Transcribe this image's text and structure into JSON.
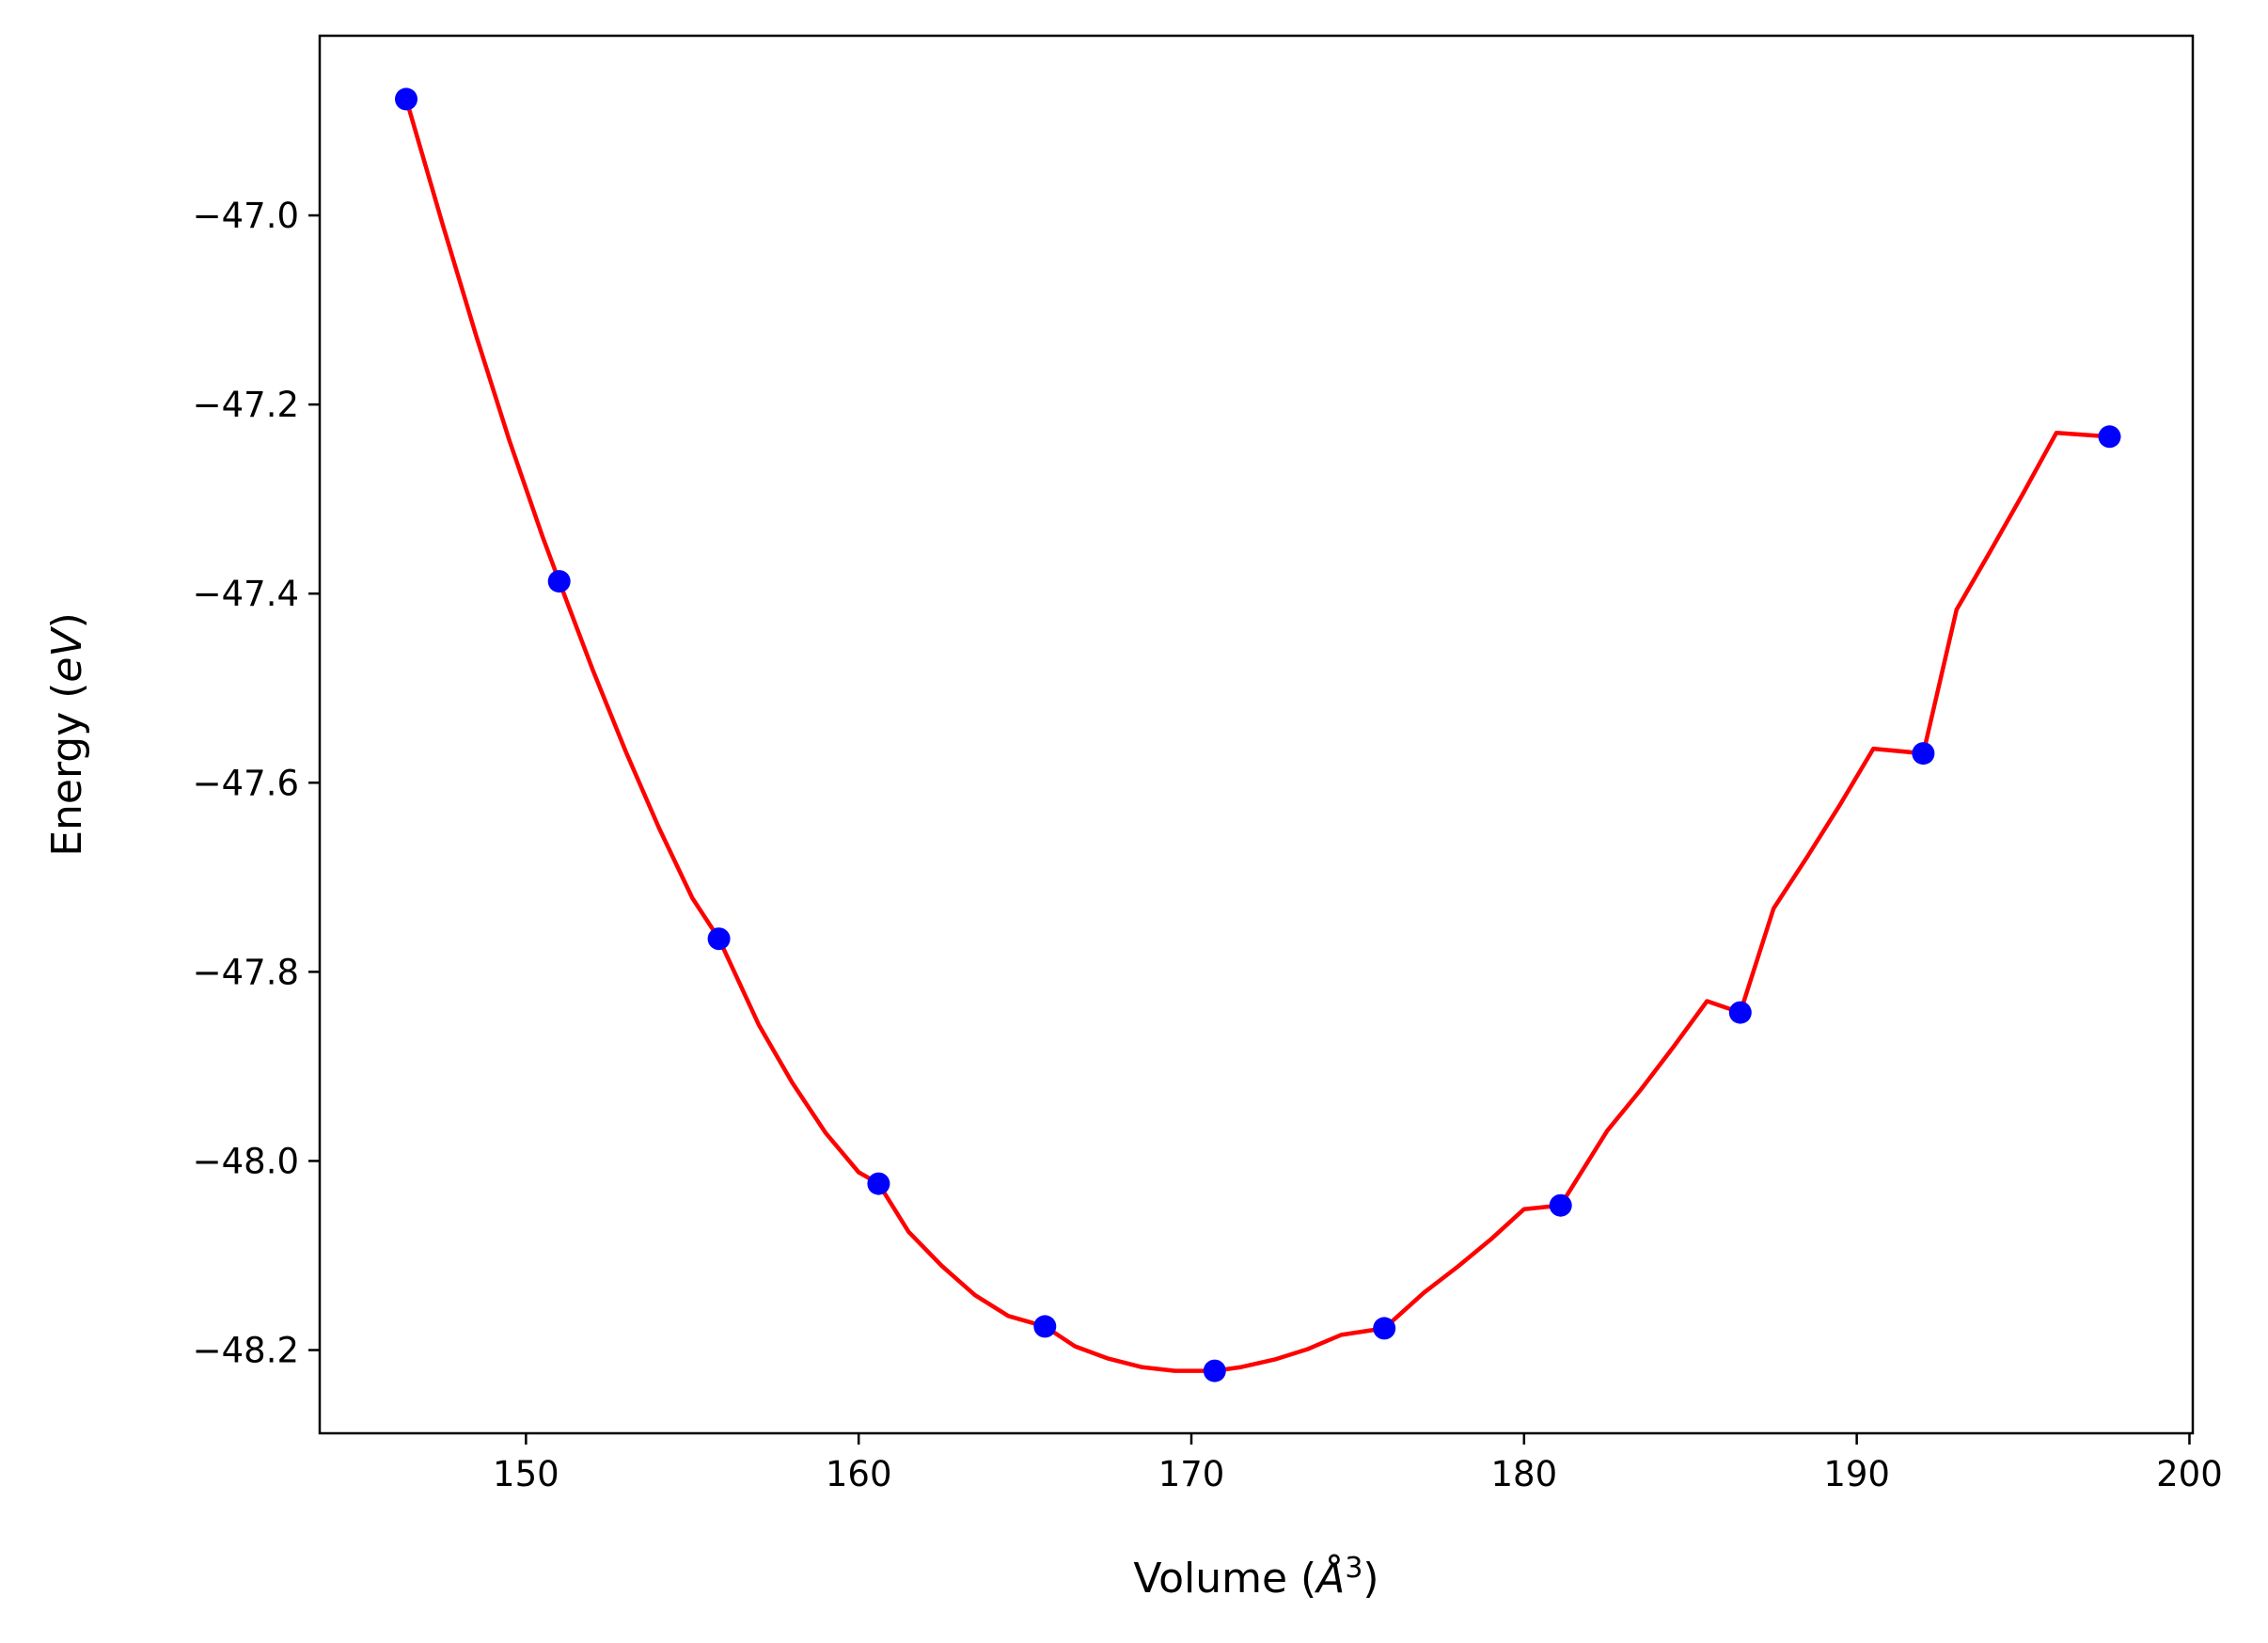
{
  "chart_data": {
    "type": "line",
    "title": "",
    "xlabel": {
      "prefix": "Volume (",
      "symbol": "Å",
      "sup": "3",
      "suffix": ")"
    },
    "ylabel": {
      "prefix": "Energy (",
      "symbol": "eV",
      "suffix": ")"
    },
    "xlim": [
      143.8,
      200.1
    ],
    "ylim": [
      -48.288,
      -46.81
    ],
    "xticks": [
      150,
      160,
      170,
      180,
      190,
      200
    ],
    "yticks": [
      -47.0,
      -47.2,
      -47.4,
      -47.6,
      -47.8,
      -48.0,
      -48.2
    ],
    "xtick_labels": [
      "150",
      "160",
      "170",
      "180",
      "190",
      "200"
    ],
    "ytick_labels": [
      "−47.0",
      "−47.2",
      "−47.4",
      "−47.6",
      "−47.8",
      "−48.0",
      "−48.2"
    ],
    "grid": false,
    "series": [
      {
        "style": "markers",
        "color": "#0000ff",
        "x": [
          146.4,
          151.0,
          155.8,
          160.6,
          165.6,
          170.7,
          175.8,
          181.1,
          186.5,
          192.0,
          197.6
        ],
        "y": [
          -46.877,
          -47.387,
          -47.765,
          -48.024,
          -48.175,
          -48.222,
          -48.177,
          -48.047,
          -47.843,
          -47.569,
          -47.234
        ]
      },
      {
        "style": "line",
        "color": "#ff0000",
        "x": [
          146.4,
          147.5,
          148.5,
          149.5,
          150.5,
          151.0,
          152.0,
          153.0,
          154.0,
          155.0,
          155.8,
          157.0,
          158.0,
          159.0,
          160.0,
          160.6,
          161.5,
          162.5,
          163.5,
          164.5,
          165.6,
          166.5,
          167.5,
          168.5,
          169.5,
          170.7,
          171.5,
          172.5,
          173.5,
          174.5,
          175.8,
          177.0,
          178.0,
          179.0,
          180.0,
          181.1,
          182.5,
          183.5,
          184.5,
          185.5,
          186.5,
          187.5,
          188.5,
          189.5,
          190.5,
          192.0,
          193.0,
          194.0,
          195.0,
          196.0,
          197.6
        ],
        "y": [
          -46.877,
          -47.01,
          -47.127,
          -47.238,
          -47.34,
          -47.387,
          -47.48,
          -47.567,
          -47.648,
          -47.722,
          -47.765,
          -47.856,
          -47.917,
          -47.97,
          -48.012,
          -48.024,
          -48.075,
          -48.111,
          -48.142,
          -48.164,
          -48.175,
          -48.196,
          -48.209,
          -48.218,
          -48.222,
          -48.222,
          -48.218,
          -48.21,
          -48.199,
          -48.184,
          -48.177,
          -48.139,
          -48.112,
          -48.083,
          -48.051,
          -48.047,
          -47.968,
          -47.925,
          -47.879,
          -47.831,
          -47.843,
          -47.733,
          -47.679,
          -47.623,
          -47.564,
          -47.569,
          -47.417,
          -47.356,
          -47.294,
          -47.23,
          -47.234
        ]
      }
    ]
  }
}
